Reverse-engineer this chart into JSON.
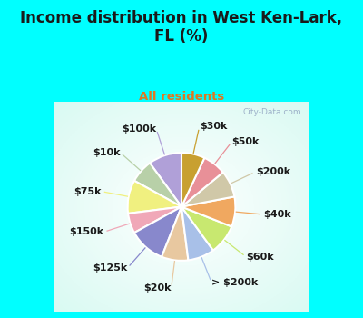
{
  "title": "Income distribution in West Ken-Lark,\nFL (%)",
  "subtitle": "All residents",
  "title_color": "#1a1a1a",
  "subtitle_color": "#e07820",
  "background_cyan": "#00ffff",
  "labels": [
    "$100k",
    "$10k",
    "$75k",
    "$150k",
    "$125k",
    "$20k",
    "> $200k",
    "$60k",
    "$40k",
    "$200k",
    "$50k",
    "$30k"
  ],
  "values": [
    10,
    7,
    10,
    6,
    11,
    8,
    8,
    9,
    9,
    8,
    7,
    7
  ],
  "colors": [
    "#b0a0d8",
    "#b8d0a8",
    "#f0f080",
    "#f0a8b8",
    "#8888cc",
    "#e8c8a0",
    "#a8c0e8",
    "#c8e870",
    "#f0a860",
    "#d0c8a8",
    "#e89098",
    "#c8a030"
  ],
  "wedge_edge_color": "white",
  "wedge_linewidth": 1.5,
  "label_fontsize": 8,
  "label_color": "#1a1a1a",
  "watermark": "City-Data.com",
  "line_colors": [
    "#b0a0d8",
    "#b8d0a8",
    "#f0f080",
    "#f0a8b8",
    "#8888cc",
    "#e8c8a0",
    "#a8c0e8",
    "#c8e870",
    "#f0a860",
    "#d0c8a8",
    "#e89098",
    "#c8a030"
  ]
}
